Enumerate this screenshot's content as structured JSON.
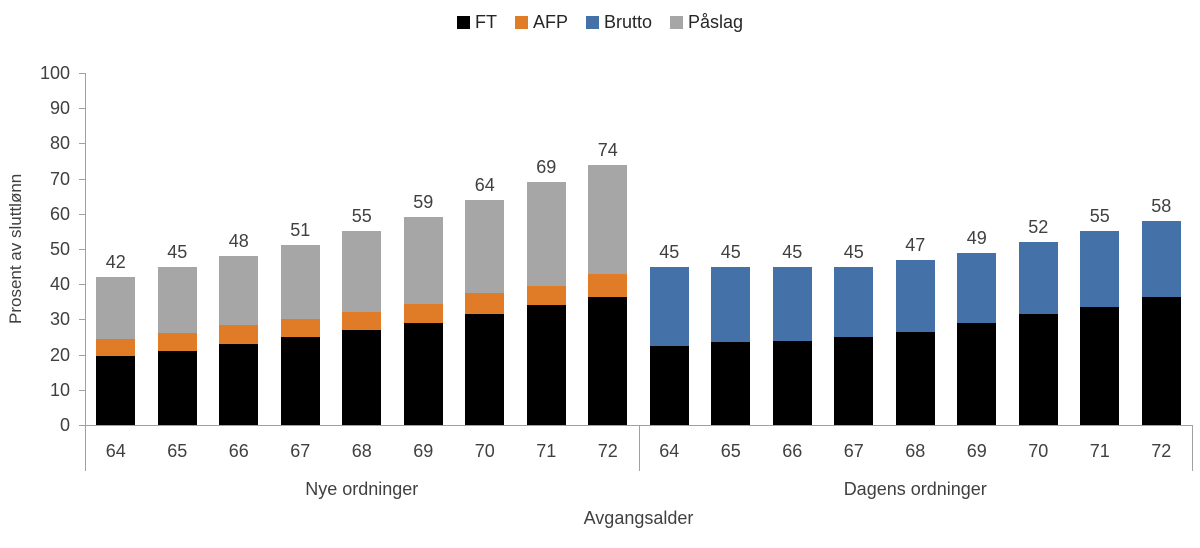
{
  "legend": {
    "items": [
      {
        "key": "ft",
        "label": "FT",
        "color": "#000000"
      },
      {
        "key": "afp",
        "label": "AFP",
        "color": "#E07C28"
      },
      {
        "key": "brutto",
        "label": "Brutto",
        "color": "#4472A8"
      },
      {
        "key": "paaslag",
        "label": "Påslag",
        "color": "#A6A6A6"
      }
    ]
  },
  "chart_data": {
    "type": "bar",
    "stacked": true,
    "title": "",
    "ylabel": "Prosent av sluttlønn",
    "xlabel": "Avgangsalder",
    "ylim": [
      0,
      100
    ],
    "ytick_step": 10,
    "grid": false,
    "legend_position": "top",
    "axis_color": "#A0A0A0",
    "text_color": "#404040",
    "groups": [
      {
        "label": "Nye ordninger",
        "categories": [
          "64",
          "65",
          "66",
          "67",
          "68",
          "69",
          "70",
          "71",
          "72"
        ],
        "series": [
          {
            "key": "ft",
            "name": "FT",
            "color": "#000000",
            "values": [
              19.5,
              21,
              23,
              25,
              27,
              29,
              31.5,
              34,
              36.5
            ]
          },
          {
            "key": "afp",
            "name": "AFP",
            "color": "#E07C28",
            "values": [
              5,
              5,
              5.5,
              5,
              5,
              5.5,
              6,
              5.5,
              6.5
            ]
          },
          {
            "key": "paaslag",
            "name": "Påslag",
            "color": "#A6A6A6",
            "values": [
              17.5,
              19,
              19.5,
              21,
              23,
              24.5,
              26.5,
              29.5,
              31
            ]
          }
        ],
        "totals": [
          42,
          45,
          48,
          51,
          55,
          59,
          64,
          69,
          74
        ]
      },
      {
        "label": "Dagens ordninger",
        "categories": [
          "64",
          "65",
          "66",
          "67",
          "68",
          "69",
          "70",
          "71",
          "72"
        ],
        "series": [
          {
            "key": "ft",
            "name": "FT",
            "color": "#000000",
            "values": [
              22.5,
              23.5,
              24,
              25,
              26.5,
              29,
              31.5,
              33.5,
              36.5
            ]
          },
          {
            "key": "brutto",
            "name": "Brutto",
            "color": "#4472A8",
            "values": [
              22.5,
              21.5,
              21,
              20,
              20.5,
              20,
              20.5,
              21.5,
              21.5
            ]
          }
        ],
        "totals": [
          45,
          45,
          45,
          45,
          47,
          49,
          52,
          55,
          58
        ]
      }
    ]
  }
}
